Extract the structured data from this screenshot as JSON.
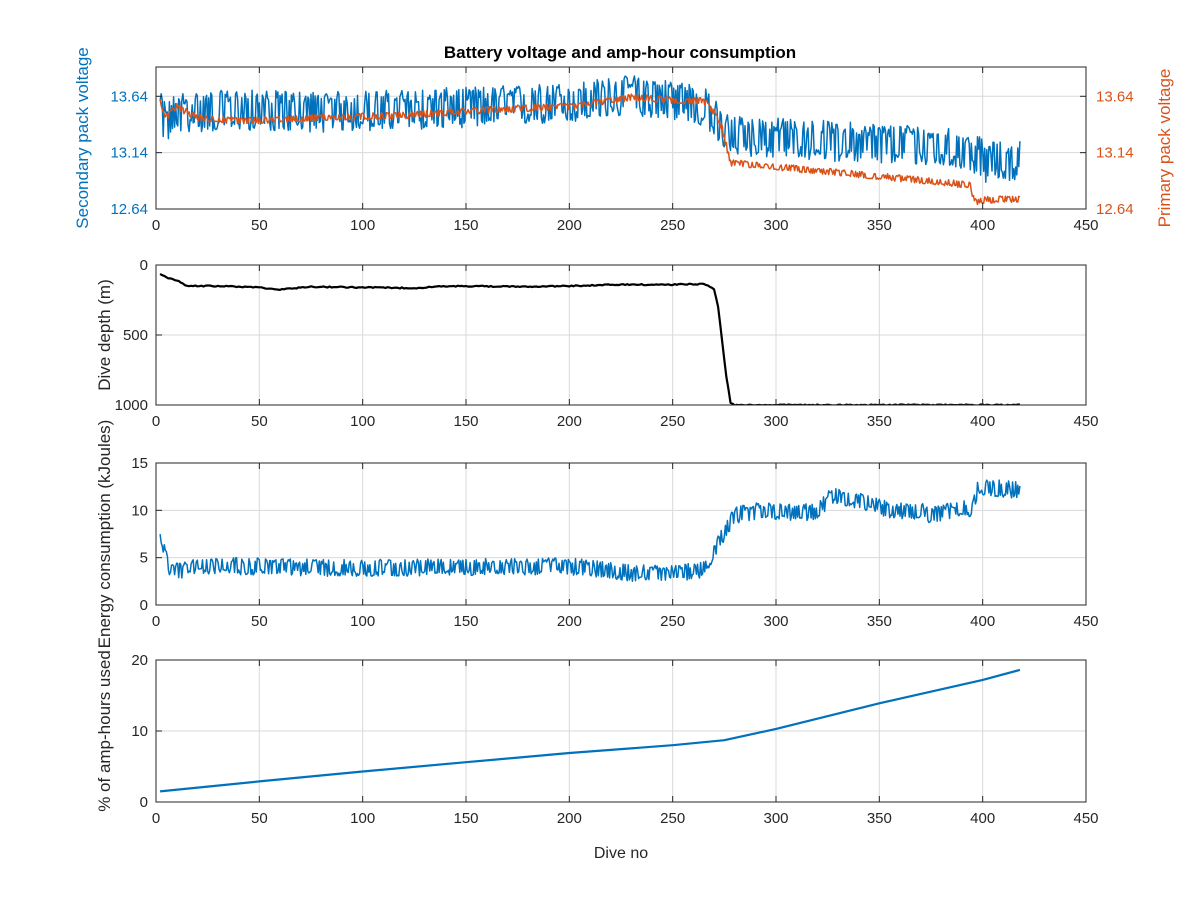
{
  "figure": {
    "title": "Battery voltage and amp-hour consumption",
    "colors": {
      "blue": "#0072bd",
      "orange": "#d95319",
      "black": "#000000",
      "axis": "#262626",
      "grid": "#d9d9d9"
    }
  },
  "chart_data": [
    {
      "type": "line",
      "title": "Battery voltage and amp-hour consumption",
      "xlabel": "",
      "xlim": [
        0,
        450
      ],
      "xticks": [
        0,
        50,
        100,
        150,
        200,
        250,
        300,
        350,
        400,
        450
      ],
      "grid": true,
      "left_axis": {
        "label": "Secondary pack voltage",
        "ylim": [
          12.64,
          13.9
        ],
        "ticks": [
          12.64,
          13.14,
          13.64
        ],
        "color": "#0072bd"
      },
      "right_axis": {
        "label": "Primary pack voltage",
        "ylim": [
          12.64,
          13.9
        ],
        "ticks": [
          12.64,
          13.14,
          13.64
        ],
        "color": "#d95319"
      },
      "series": [
        {
          "axis": "left",
          "color": "#0072bd",
          "style": "noisy",
          "noise": 0.18,
          "x": [
            2,
            5,
            10,
            20,
            40,
            80,
            120,
            160,
            200,
            230,
            255,
            265,
            272,
            277,
            290,
            320,
            350,
            380,
            395,
            402,
            418
          ],
          "base": [
            13.5,
            13.4,
            13.5,
            13.5,
            13.52,
            13.5,
            13.52,
            13.55,
            13.58,
            13.65,
            13.6,
            13.55,
            13.4,
            13.3,
            13.28,
            13.25,
            13.22,
            13.2,
            13.15,
            13.05,
            13.08
          ]
        },
        {
          "axis": "right",
          "color": "#d95319",
          "style": "noisy",
          "noise": 0.03,
          "x": [
            2,
            5,
            10,
            20,
            40,
            80,
            120,
            160,
            200,
            230,
            255,
            265,
            270,
            274,
            278,
            290,
            320,
            350,
            380,
            394,
            396,
            400,
            418
          ],
          "base": [
            13.6,
            13.45,
            13.55,
            13.45,
            13.42,
            13.45,
            13.47,
            13.52,
            13.55,
            13.63,
            13.6,
            13.6,
            13.5,
            13.35,
            13.05,
            13.03,
            12.98,
            12.93,
            12.88,
            12.85,
            12.7,
            12.72,
            12.73
          ]
        }
      ]
    },
    {
      "type": "line",
      "xlabel": "",
      "ylabel": "Dive depth (m)",
      "xlim": [
        0,
        450
      ],
      "ylim": [
        0,
        1000
      ],
      "yreversed": true,
      "xticks": [
        0,
        50,
        100,
        150,
        200,
        250,
        300,
        350,
        400,
        450
      ],
      "yticks": [
        0,
        500,
        1000
      ],
      "grid": true,
      "series": [
        {
          "color": "#000000",
          "style": "smooth",
          "noise": 8,
          "x": [
            2,
            5,
            10,
            15,
            30,
            50,
            60,
            75,
            100,
            125,
            135,
            150,
            175,
            200,
            225,
            250,
            265,
            270,
            272,
            274,
            276,
            278,
            280,
            300,
            350,
            400,
            418
          ],
          "y": [
            60,
            90,
            110,
            150,
            150,
            160,
            175,
            155,
            160,
            165,
            155,
            150,
            155,
            150,
            140,
            140,
            135,
            170,
            300,
            550,
            800,
            985,
            1000,
            1000,
            1000,
            1000,
            1000
          ]
        }
      ]
    },
    {
      "type": "line",
      "xlabel": "",
      "ylabel": "Energy consumption (kJoules)",
      "xlim": [
        0,
        450
      ],
      "ylim": [
        0,
        15
      ],
      "xticks": [
        0,
        50,
        100,
        150,
        200,
        250,
        300,
        350,
        400,
        450
      ],
      "yticks": [
        0,
        5,
        10,
        15
      ],
      "grid": true,
      "series": [
        {
          "color": "#0072bd",
          "style": "noisy",
          "noise": 0.9,
          "x": [
            2,
            4,
            7,
            12,
            20,
            60,
            100,
            150,
            200,
            230,
            250,
            265,
            272,
            280,
            290,
            320,
            327,
            340,
            355,
            370,
            375,
            395,
            398,
            418
          ],
          "base": [
            8,
            5.5,
            3.8,
            3.6,
            4.2,
            4.0,
            3.9,
            4.0,
            4.1,
            3.4,
            3.3,
            3.8,
            6.5,
            9.5,
            9.9,
            9.8,
            11.6,
            11.1,
            10.0,
            9.9,
            9.5,
            10.3,
            12.5,
            12.1
          ]
        }
      ]
    },
    {
      "type": "line",
      "xlabel": "Dive no",
      "ylabel": "% of amp-hours used",
      "xlim": [
        0,
        450
      ],
      "ylim": [
        0,
        20
      ],
      "xticks": [
        0,
        50,
        100,
        150,
        200,
        250,
        300,
        350,
        400,
        450
      ],
      "yticks": [
        0,
        10,
        20
      ],
      "grid": true,
      "series": [
        {
          "color": "#0072bd",
          "style": "smooth",
          "x": [
            2,
            50,
            100,
            150,
            200,
            250,
            275,
            300,
            350,
            400,
            418
          ],
          "y": [
            1.5,
            2.9,
            4.3,
            5.6,
            6.9,
            8.0,
            8.7,
            10.3,
            13.9,
            17.2,
            18.6
          ]
        }
      ]
    }
  ]
}
